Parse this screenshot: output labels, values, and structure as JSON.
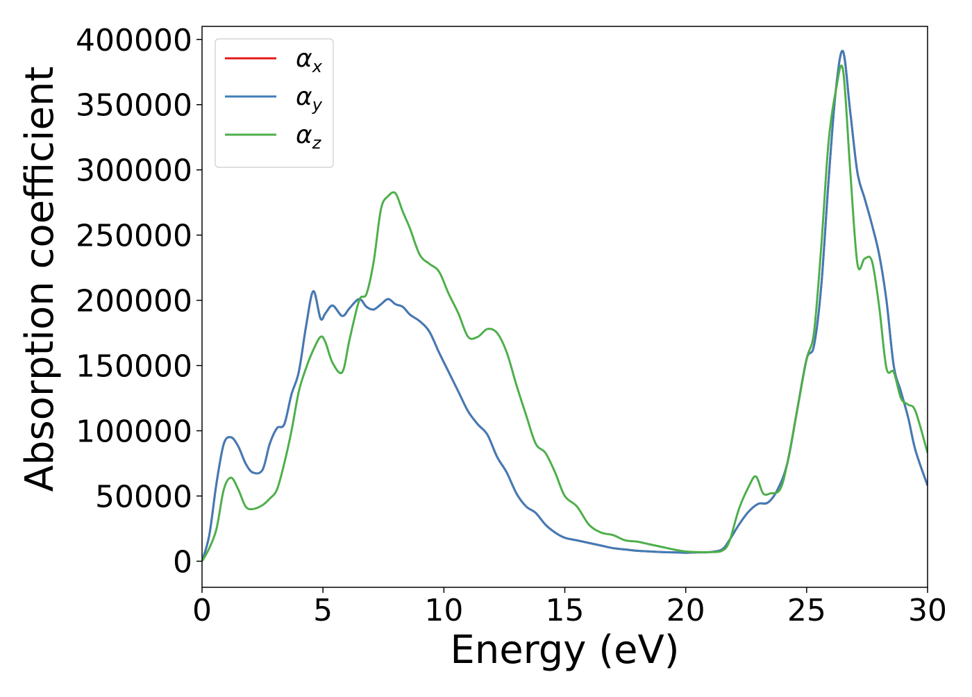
{
  "chart_data": {
    "type": "line",
    "xlabel": "Energy (eV)",
    "ylabel": "Absorption coefficient",
    "xlim": [
      0,
      30
    ],
    "ylim": [
      -20000,
      410000
    ],
    "xticks": [
      0,
      5,
      10,
      15,
      20,
      25,
      30
    ],
    "yticks": [
      0,
      50000,
      100000,
      150000,
      200000,
      250000,
      300000,
      350000,
      400000
    ],
    "grid": false,
    "legend_position": "upper-left",
    "series": [
      {
        "name": "αx",
        "symbol": "α",
        "subscript": "x",
        "color": "#e41a1c",
        "x": [
          0,
          0.3,
          0.6,
          0.9,
          1.2,
          1.5,
          1.8,
          2.1,
          2.5,
          2.8,
          3.1,
          3.4,
          3.7,
          4.0,
          4.3,
          4.6,
          4.9,
          5.1,
          5.4,
          5.8,
          6.1,
          6.5,
          6.8,
          7.1,
          7.4,
          7.7,
          8.0,
          8.3,
          8.6,
          9.0,
          9.4,
          9.8,
          10.2,
          10.6,
          11.0,
          11.4,
          11.8,
          12.2,
          12.6,
          13.0,
          13.4,
          13.8,
          14.2,
          14.6,
          15.0,
          15.5,
          16.0,
          16.5,
          17.0,
          17.5,
          18.0,
          18.5,
          19.0,
          19.5,
          20.0,
          20.5,
          21.0,
          21.5,
          21.8,
          22.2,
          22.6,
          23.0,
          23.4,
          23.8,
          24.2,
          24.6,
          25.0,
          25.3,
          25.6,
          25.9,
          26.2,
          26.5,
          26.8,
          27.1,
          27.4,
          27.7,
          28.0,
          28.3,
          28.6,
          28.9,
          29.2,
          29.5,
          30.0
        ],
        "values": [
          0,
          20000,
          60000,
          90000,
          95000,
          88000,
          75000,
          68000,
          70000,
          90000,
          102000,
          105000,
          128000,
          145000,
          180000,
          207000,
          186000,
          190000,
          196000,
          188000,
          194000,
          201000,
          195000,
          193000,
          197000,
          201000,
          197000,
          195000,
          189000,
          184000,
          176000,
          160000,
          145000,
          130000,
          115000,
          105000,
          97000,
          80000,
          68000,
          52000,
          42000,
          37000,
          28000,
          22000,
          18000,
          16000,
          14000,
          12000,
          10000,
          9000,
          8000,
          7500,
          7000,
          6800,
          6500,
          6800,
          7000,
          9000,
          16000,
          28000,
          38000,
          44000,
          45000,
          55000,
          75000,
          115000,
          155000,
          165000,
          210000,
          290000,
          360000,
          391000,
          345000,
          298000,
          278000,
          258000,
          235000,
          200000,
          150000,
          130000,
          110000,
          85000,
          58000
        ]
      },
      {
        "name": "αy",
        "symbol": "α",
        "subscript": "y",
        "color": "#3f7cb8",
        "x": [
          0,
          0.3,
          0.6,
          0.9,
          1.2,
          1.5,
          1.8,
          2.1,
          2.5,
          2.8,
          3.1,
          3.4,
          3.7,
          4.0,
          4.3,
          4.6,
          4.9,
          5.1,
          5.4,
          5.8,
          6.1,
          6.5,
          6.8,
          7.1,
          7.4,
          7.7,
          8.0,
          8.3,
          8.6,
          9.0,
          9.4,
          9.8,
          10.2,
          10.6,
          11.0,
          11.4,
          11.8,
          12.2,
          12.6,
          13.0,
          13.4,
          13.8,
          14.2,
          14.6,
          15.0,
          15.5,
          16.0,
          16.5,
          17.0,
          17.5,
          18.0,
          18.5,
          19.0,
          19.5,
          20.0,
          20.5,
          21.0,
          21.5,
          21.8,
          22.2,
          22.6,
          23.0,
          23.4,
          23.8,
          24.2,
          24.6,
          25.0,
          25.3,
          25.6,
          25.9,
          26.2,
          26.5,
          26.8,
          27.1,
          27.4,
          27.7,
          28.0,
          28.3,
          28.6,
          28.9,
          29.2,
          29.5,
          30.0
        ],
        "values": [
          0,
          20000,
          60000,
          90000,
          95000,
          88000,
          75000,
          68000,
          70000,
          90000,
          102000,
          105000,
          128000,
          145000,
          180000,
          207000,
          186000,
          190000,
          196000,
          188000,
          194000,
          201000,
          195000,
          193000,
          197000,
          201000,
          197000,
          195000,
          189000,
          184000,
          176000,
          160000,
          145000,
          130000,
          115000,
          105000,
          97000,
          80000,
          68000,
          52000,
          42000,
          37000,
          28000,
          22000,
          18000,
          16000,
          14000,
          12000,
          10000,
          9000,
          8000,
          7500,
          7000,
          6800,
          6500,
          6800,
          7000,
          9000,
          16000,
          28000,
          38000,
          44000,
          45000,
          55000,
          75000,
          115000,
          155000,
          165000,
          210000,
          290000,
          360000,
          391000,
          345000,
          298000,
          278000,
          258000,
          235000,
          200000,
          150000,
          130000,
          110000,
          85000,
          58000
        ]
      },
      {
        "name": "αz",
        "symbol": "α",
        "subscript": "z",
        "color": "#4daf4a",
        "x": [
          0,
          0.3,
          0.6,
          0.9,
          1.2,
          1.5,
          1.8,
          2.1,
          2.5,
          2.8,
          3.1,
          3.4,
          3.7,
          4.0,
          4.3,
          4.6,
          4.9,
          5.1,
          5.4,
          5.8,
          6.1,
          6.5,
          6.8,
          7.1,
          7.4,
          7.7,
          8.0,
          8.3,
          8.6,
          9.0,
          9.4,
          9.8,
          10.2,
          10.6,
          11.0,
          11.4,
          11.8,
          12.2,
          12.6,
          13.0,
          13.4,
          13.8,
          14.2,
          14.6,
          15.0,
          15.5,
          16.0,
          16.5,
          17.0,
          17.5,
          18.0,
          18.5,
          19.0,
          19.5,
          20.0,
          20.5,
          21.0,
          21.5,
          21.8,
          22.2,
          22.6,
          22.9,
          23.2,
          23.5,
          23.9,
          24.2,
          24.6,
          25.0,
          25.3,
          25.6,
          25.9,
          26.2,
          26.5,
          26.8,
          27.1,
          27.4,
          27.7,
          28.0,
          28.3,
          28.6,
          28.9,
          29.2,
          29.5,
          30.0
        ],
        "values": [
          0,
          10000,
          25000,
          55000,
          64000,
          55000,
          42000,
          40000,
          43000,
          48000,
          55000,
          75000,
          100000,
          130000,
          148000,
          162000,
          172000,
          168000,
          152000,
          145000,
          170000,
          200000,
          205000,
          230000,
          270000,
          280000,
          282000,
          268000,
          255000,
          235000,
          228000,
          222000,
          205000,
          190000,
          172000,
          172000,
          178000,
          175000,
          160000,
          135000,
          112000,
          90000,
          83000,
          68000,
          50000,
          42000,
          28000,
          22000,
          20000,
          16000,
          15000,
          13000,
          11000,
          9000,
          7500,
          7000,
          7000,
          8000,
          15000,
          40000,
          57000,
          65000,
          52000,
          52000,
          55000,
          75000,
          115000,
          155000,
          175000,
          240000,
          320000,
          360000,
          377000,
          300000,
          228000,
          232000,
          230000,
          195000,
          148000,
          145000,
          125000,
          120000,
          115000,
          83000
        ]
      }
    ]
  }
}
